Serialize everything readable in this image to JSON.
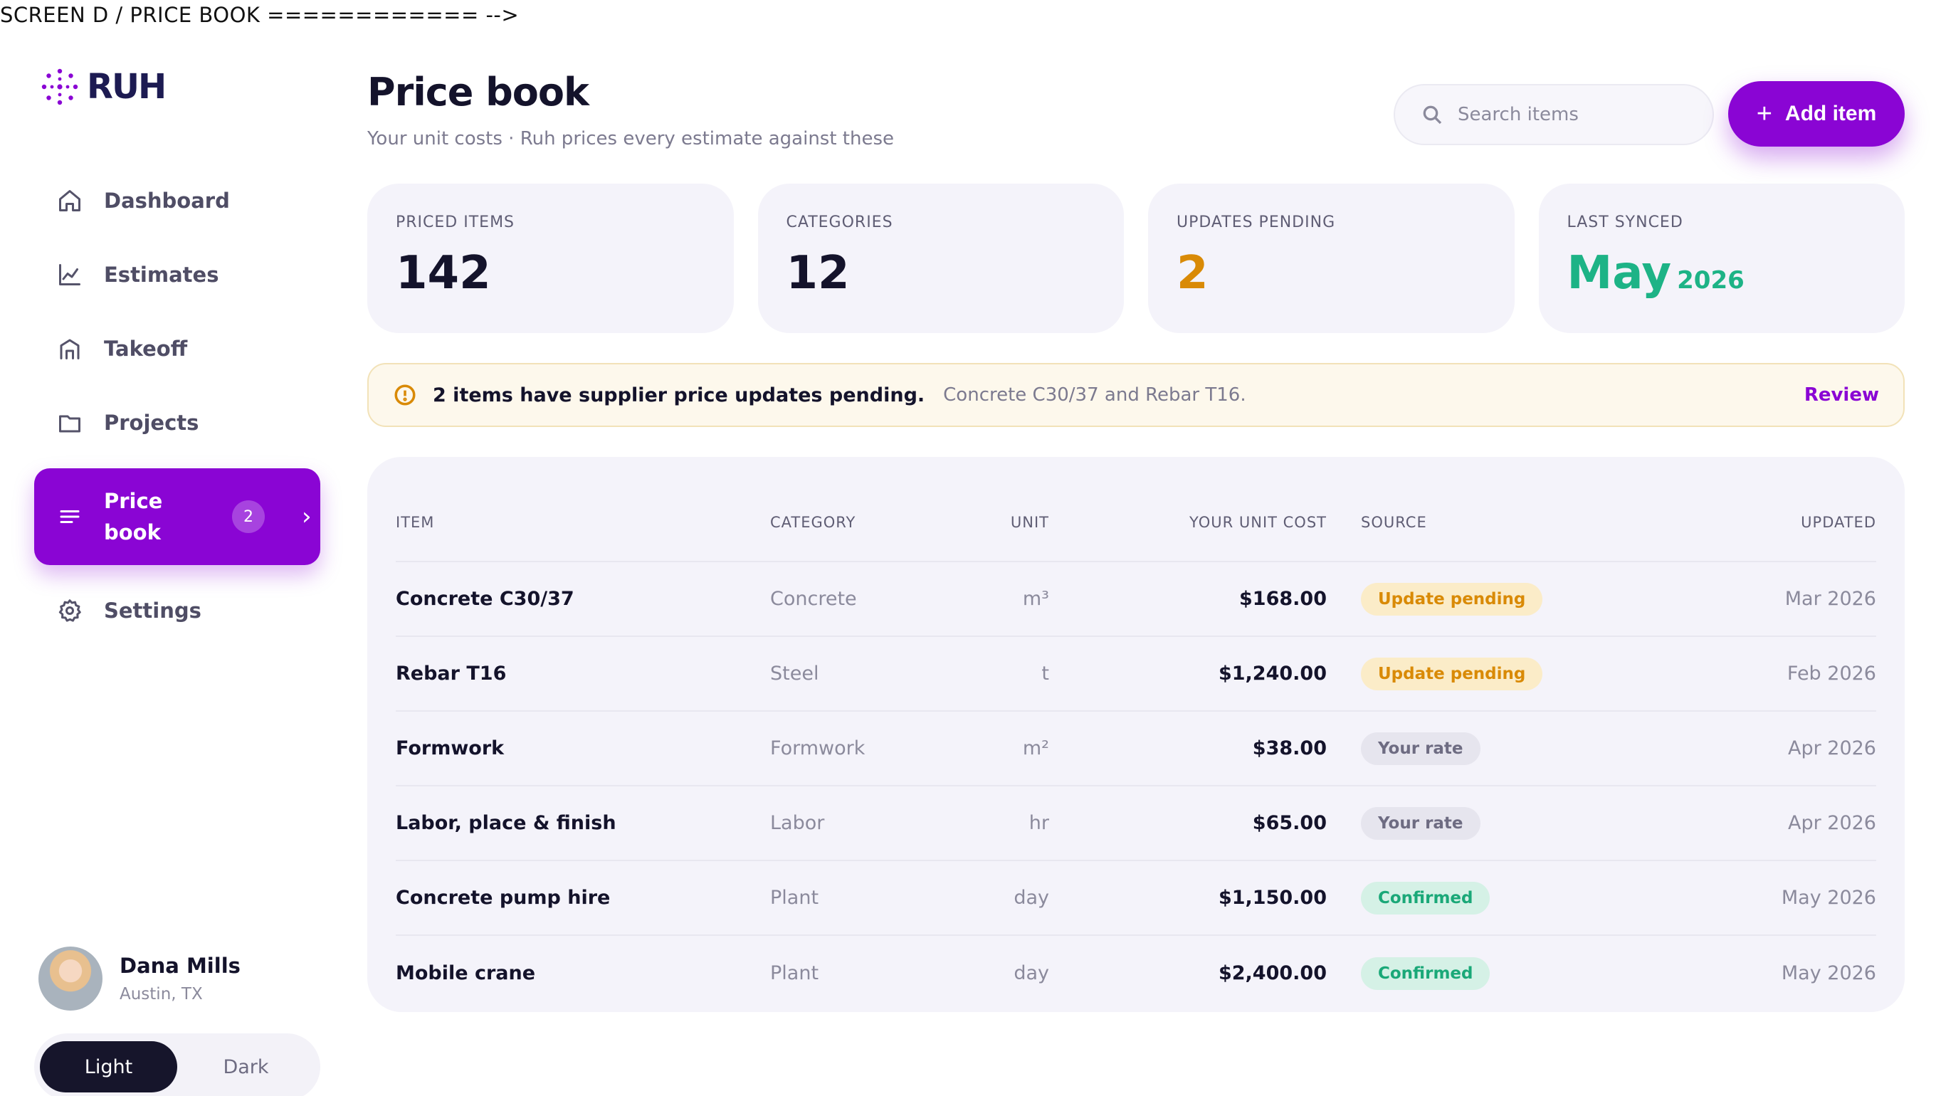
{
  "screen_label": "SCREEN D / PRICE BOOK ============ -->",
  "brand": {
    "name": "RUH",
    "accent": "#8a05d4"
  },
  "nav": [
    {
      "label": "Dashboard",
      "icon": "home-icon"
    },
    {
      "label": "Estimates",
      "icon": "chart-icon"
    },
    {
      "label": "Takeoff",
      "icon": "building-icon"
    },
    {
      "label": "Projects",
      "icon": "folder-icon"
    },
    {
      "label_line1": "Price",
      "label_line2": "book",
      "icon": "list-icon",
      "badge": "2",
      "active": true
    },
    {
      "label": "Settings",
      "icon": "gear-icon"
    }
  ],
  "user": {
    "name": "Dana Mills",
    "location": "Austin, TX"
  },
  "theme": {
    "light": "Light",
    "dark": "Dark",
    "selected": "Light"
  },
  "header": {
    "title": "Price book",
    "subtitle": "Your unit costs · Ruh prices every estimate against these",
    "search_placeholder": "Search items",
    "add_label": "Add item"
  },
  "stats": [
    {
      "label": "PRICED ITEMS",
      "value": "142"
    },
    {
      "label": "CATEGORIES",
      "value": "12"
    },
    {
      "label": "UPDATES PENDING",
      "value": "2"
    },
    {
      "label": "LAST SYNCED",
      "value": "May",
      "suffix": "2026"
    }
  ],
  "alert": {
    "strong": "2 items have supplier price updates pending.",
    "detail": "Concrete C30/37 and Rebar T16.",
    "action": "Review"
  },
  "table": {
    "columns": [
      "ITEM",
      "CATEGORY",
      "UNIT",
      "YOUR UNIT COST",
      "SOURCE",
      "UPDATED"
    ],
    "rows": [
      {
        "item": "Concrete C30/37",
        "category": "Concrete",
        "unit": "m³",
        "cost": "$168.00",
        "source": "Update pending",
        "status": "amber",
        "updated": "Mar 2026"
      },
      {
        "item": "Rebar T16",
        "category": "Steel",
        "unit": "t",
        "cost": "$1,240.00",
        "source": "Update pending",
        "status": "amber",
        "updated": "Feb 2026"
      },
      {
        "item": "Formwork",
        "category": "Formwork",
        "unit": "m²",
        "cost": "$38.00",
        "source": "Your rate",
        "status": "grey",
        "updated": "Apr 2026"
      },
      {
        "item": "Labor, place & finish",
        "category": "Labor",
        "unit": "hr",
        "cost": "$65.00",
        "source": "Your rate",
        "status": "grey",
        "updated": "Apr 2026"
      },
      {
        "item": "Concrete pump hire",
        "category": "Plant",
        "unit": "day",
        "cost": "$1,150.00",
        "source": "Confirmed",
        "status": "green",
        "updated": "May 2026"
      },
      {
        "item": "Mobile crane",
        "category": "Plant",
        "unit": "day",
        "cost": "$2,400.00",
        "source": "Confirmed",
        "status": "green",
        "updated": "May 2026"
      }
    ]
  }
}
